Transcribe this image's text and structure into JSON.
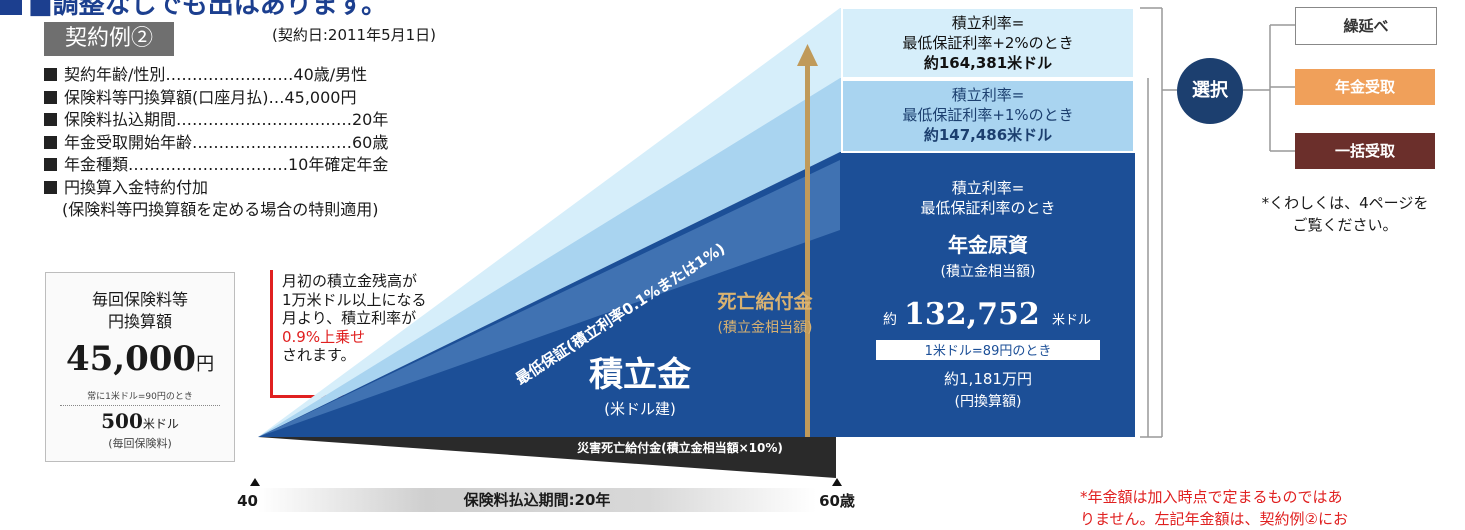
{
  "header": {
    "title": "■調整なしでも出はあります。",
    "badge": "契約例②",
    "contract_date": "(契約日:2011年5月1日)"
  },
  "details": [
    "契約年齢/性別……………………40歳/男性",
    "保険料等円換算額(口座月払)…45,000円",
    "保険料払込期間……………………………20年",
    "年金受取開始年齢…………………………60歳",
    "年金種類…………………………10年確定年金",
    "円換算入金特約付加"
  ],
  "details_sub": "(保険料等円換算額を定める場合の特則適用)",
  "premium_box": {
    "label_line1": "毎回保険料等",
    "label_line2": "円換算額",
    "amount": "45,000",
    "amount_unit": "円",
    "note": "常に1米ドル=90円のとき",
    "usd_amount": "500",
    "usd_unit": "米ドル",
    "usd_note": "(毎回保険料)"
  },
  "explanation": {
    "line1": "月初の積立金残高が",
    "line2": "1万米ドル以上になる",
    "line3": "月より、積立利率が",
    "line4_red": "0.9%上乗せ",
    "line5": "されます。"
  },
  "chart": {
    "min_guarantee_label": "最低保証(積立利率0.1%または1%)",
    "accumulation_label": "積立金",
    "accumulation_sub": "(米ドル建)",
    "death_benefit_label": "死亡給付金",
    "death_benefit_sub": "(積立金相当額)",
    "disaster_label": "災害死亡給付金(積立金相当額×10%)",
    "top_box": {
      "line1": "積立利率=",
      "line2": "最低保証利率+2%のとき",
      "line3": "約164,381米ドル"
    },
    "mid_box": {
      "line1": "積立利率=",
      "line2": "最低保証利率+1%のとき",
      "line3": "約147,486米ドル"
    },
    "base_box": {
      "line1": "積立利率=",
      "line2": "最低保証利率のとき",
      "fund_label": "年金原資",
      "fund_sub": "(積立金相当額)",
      "approx": "約",
      "amount": "132,752",
      "amount_unit": "米ドル",
      "rate_note": "1米ドル=89円のとき",
      "yen_amount": "約1,181万円",
      "yen_sub": "(円換算額)"
    }
  },
  "selection": {
    "circle_label": "選択",
    "options": [
      "繰延べ",
      "年金受取",
      "一括受取"
    ],
    "see_more_line1": "*くわしくは、4ページを",
    "see_more_line2": "ご覧ください。"
  },
  "timeline": {
    "start_age": "40歳",
    "end_age": "60歳",
    "period_label": "保険料払込期間:20年"
  },
  "bottom_note": {
    "line1": "*年金額は加入時点で定まるものではあ",
    "line2": "りません。左記年金額は、契約例②にお"
  },
  "colors": {
    "navy": "#1c4f97",
    "light_blue": "#a9d4f0",
    "pale_blue": "#d6eefa",
    "gold": "#c09a5a",
    "red": "#e02020",
    "brown": "#6b2f2b",
    "orange": "#f0a05a"
  }
}
